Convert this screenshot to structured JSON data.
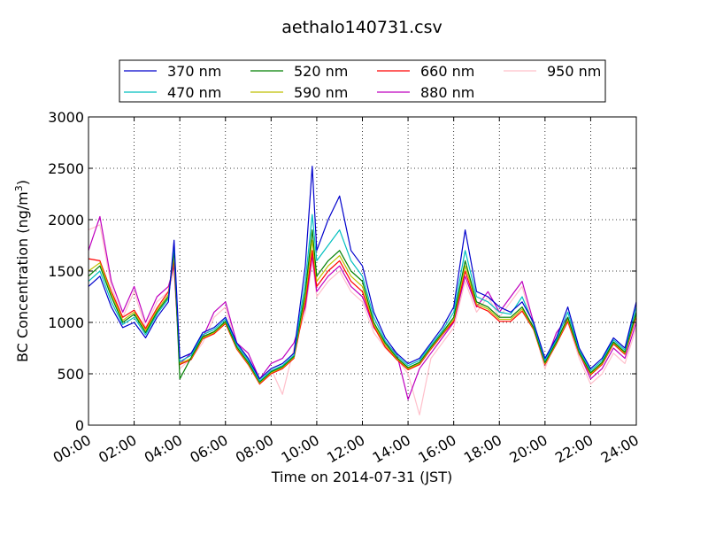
{
  "chart_data": {
    "type": "line",
    "title": "aethalo140731.csv",
    "xlabel": "Time on 2014-07-31 (JST)",
    "ylabel": "BC Concentration (ng/m",
    "ylabel_sup": "3",
    "ylabel_close": ")",
    "x_ticks": [
      "00:00",
      "02:00",
      "04:00",
      "06:00",
      "08:00",
      "10:00",
      "12:00",
      "14:00",
      "16:00",
      "18:00",
      "20:00",
      "22:00",
      "24:00"
    ],
    "y_ticks": [
      "0",
      "500",
      "1000",
      "1500",
      "2000",
      "2500",
      "3000"
    ],
    "xlim": [
      0,
      24
    ],
    "ylim": [
      0,
      3000
    ],
    "grid": true,
    "legend_position": "top",
    "x_hours": [
      0,
      0.5,
      1,
      1.5,
      2,
      2.5,
      3,
      3.5,
      3.75,
      4,
      4.5,
      5,
      5.5,
      6,
      6.5,
      7,
      7.5,
      8,
      8.5,
      9,
      9.5,
      9.8,
      10,
      10.5,
      11,
      11.5,
      12,
      12.5,
      13,
      13.5,
      14,
      14.5,
      15,
      15.5,
      16,
      16.5,
      17,
      17.5,
      18,
      18.5,
      19,
      19.5,
      20,
      20.5,
      21,
      21.5,
      22,
      22.5,
      23,
      23.5,
      24
    ],
    "series": [
      {
        "name": "370 nm",
        "color": "#0000cc",
        "values": [
          1350,
          1450,
          1150,
          950,
          1000,
          850,
          1050,
          1200,
          1800,
          650,
          700,
          900,
          950,
          1050,
          800,
          650,
          450,
          550,
          600,
          700,
          1550,
          2520,
          1700,
          2000,
          2230,
          1700,
          1550,
          1100,
          850,
          700,
          600,
          650,
          800,
          950,
          1150,
          1900,
          1300,
          1250,
          1150,
          1100,
          1200,
          1000,
          650,
          850,
          1150,
          750,
          550,
          650,
          850,
          750,
          1200
        ]
      },
      {
        "name": "470 nm",
        "color": "#00bfbf",
        "values": [
          1400,
          1500,
          1200,
          980,
          1050,
          880,
          1080,
          1230,
          1750,
          620,
          680,
          880,
          930,
          1030,
          780,
          630,
          430,
          530,
          580,
          680,
          1400,
          2050,
          1600,
          1750,
          1900,
          1600,
          1450,
          1050,
          820,
          680,
          580,
          630,
          780,
          920,
          1100,
          1700,
          1250,
          1200,
          1100,
          1080,
          1250,
          980,
          630,
          830,
          1100,
          730,
          530,
          630,
          830,
          730,
          1150
        ]
      },
      {
        "name": "520 nm",
        "color": "#007f00",
        "values": [
          1450,
          1550,
          1250,
          1000,
          1080,
          900,
          1100,
          1250,
          1700,
          450,
          660,
          860,
          910,
          1010,
          760,
          610,
          420,
          520,
          570,
          670,
          1300,
          1900,
          1450,
          1600,
          1700,
          1500,
          1400,
          1000,
          800,
          660,
          560,
          610,
          760,
          900,
          1050,
          1600,
          1200,
          1150,
          1050,
          1050,
          1150,
          950,
          610,
          810,
          1050,
          710,
          510,
          610,
          810,
          710,
          1100
        ]
      },
      {
        "name": "590 nm",
        "color": "#bfbf00",
        "values": [
          1500,
          1580,
          1280,
          1020,
          1100,
          920,
          1120,
          1270,
          1650,
          600,
          650,
          850,
          900,
          1000,
          750,
          600,
          410,
          510,
          560,
          660,
          1250,
          1800,
          1400,
          1550,
          1650,
          1450,
          1350,
          980,
          780,
          650,
          550,
          600,
          750,
          890,
          1030,
          1550,
          1180,
          1130,
          1030,
          1030,
          1130,
          940,
          600,
          800,
          1030,
          700,
          500,
          600,
          800,
          700,
          1080
        ]
      },
      {
        "name": "660 nm",
        "color": "#ff0000",
        "values": [
          1620,
          1600,
          1300,
          1050,
          1120,
          940,
          1140,
          1300,
          1600,
          590,
          640,
          840,
          890,
          990,
          740,
          590,
          400,
          500,
          550,
          650,
          1200,
          1700,
          1350,
          1500,
          1600,
          1400,
          1300,
          960,
          760,
          640,
          540,
          590,
          740,
          880,
          1010,
          1500,
          1160,
          1110,
          1010,
          1010,
          1110,
          930,
          590,
          790,
          1010,
          690,
          490,
          590,
          790,
          690,
          1060
        ]
      },
      {
        "name": "880 nm",
        "color": "#bf00bf",
        "values": [
          1700,
          2030,
          1400,
          1100,
          1350,
          1000,
          1250,
          1350,
          1550,
          600,
          700,
          850,
          1100,
          1200,
          800,
          700,
          450,
          600,
          650,
          800,
          1150,
          1650,
          1300,
          1450,
          1550,
          1350,
          1250,
          950,
          800,
          700,
          250,
          550,
          700,
          850,
          1000,
          1450,
          1150,
          1300,
          1100,
          1250,
          1400,
          1000,
          600,
          900,
          1050,
          700,
          450,
          550,
          750,
          650,
          1000
        ]
      },
      {
        "name": "950 nm",
        "color": "#ffc0cb",
        "values": [
          1900,
          1950,
          1350,
          1050,
          1300,
          950,
          1200,
          1300,
          1500,
          550,
          650,
          800,
          1050,
          1150,
          750,
          650,
          400,
          550,
          300,
          750,
          1100,
          1600,
          1250,
          1400,
          1500,
          1300,
          1200,
          900,
          750,
          650,
          500,
          100,
          650,
          800,
          950,
          1400,
          1100,
          1250,
          1050,
          1200,
          1350,
          950,
          550,
          850,
          1000,
          650,
          400,
          500,
          700,
          600,
          950
        ]
      }
    ]
  }
}
